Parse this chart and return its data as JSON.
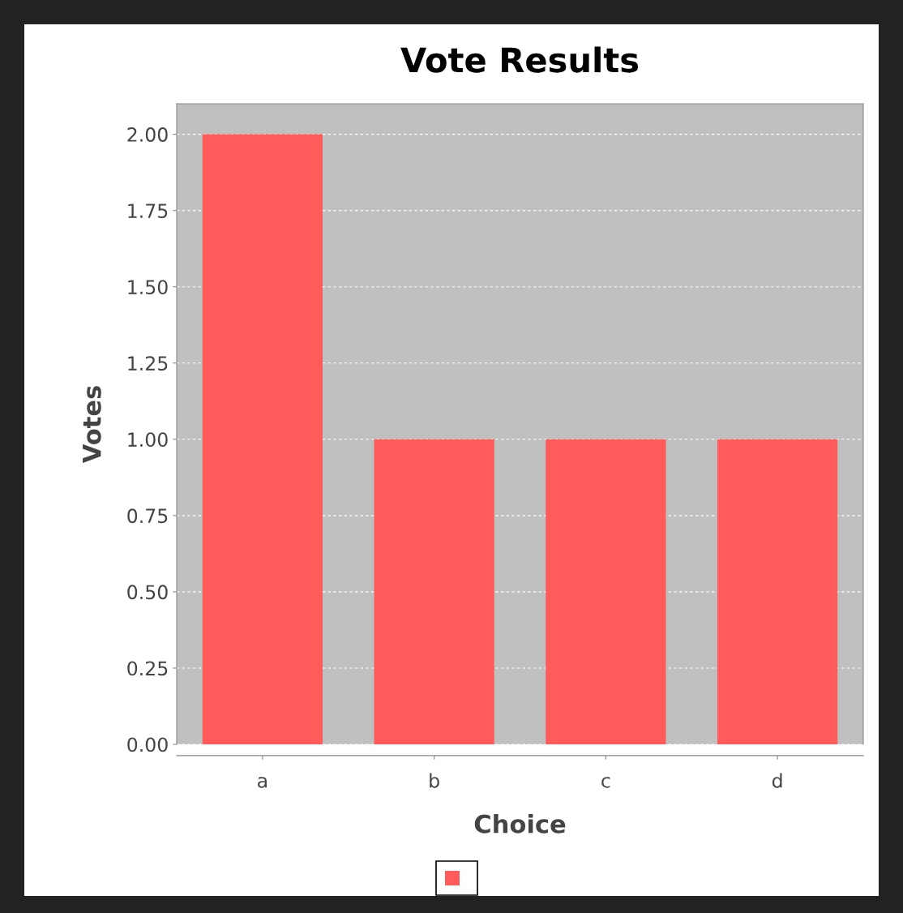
{
  "chart_data": {
    "type": "bar",
    "title": "Vote Results",
    "xlabel": "Choice",
    "ylabel": "Votes",
    "categories": [
      "a",
      "b",
      "c",
      "d"
    ],
    "series": [
      {
        "color": "#ff5b5b",
        "values": [
          2,
          1,
          1,
          1
        ]
      }
    ],
    "ylim": [
      0,
      2.1
    ],
    "yticks": [
      {
        "value": 0,
        "label": "0.00"
      },
      {
        "value": 0.25,
        "label": "0.25"
      },
      {
        "value": 0.5,
        "label": "0.50"
      },
      {
        "value": 0.75,
        "label": "0.75"
      },
      {
        "value": 1,
        "label": "1.00"
      },
      {
        "value": 1.25,
        "label": "1.25"
      },
      {
        "value": 1.5,
        "label": "1.50"
      },
      {
        "value": 1.75,
        "label": "1.75"
      },
      {
        "value": 2,
        "label": "2.00"
      }
    ],
    "grid": "y"
  }
}
